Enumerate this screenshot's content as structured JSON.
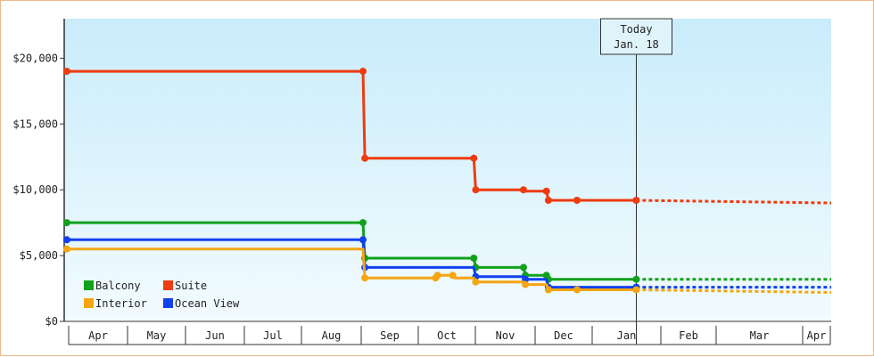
{
  "chart_data": {
    "type": "line",
    "title": "",
    "xlabel": "",
    "ylabel": "",
    "ylim": [
      0,
      23000
    ],
    "yticks": [
      0,
      5000,
      10000,
      15000,
      20000
    ],
    "ytick_labels": [
      "$0",
      "$5,000",
      "$10,000",
      "$15,000",
      "$20,000"
    ],
    "xlim": [
      "2023-03-27",
      "2024-04-29"
    ],
    "month_ticks": [
      {
        "label": "Apr",
        "start": "2023-03-27",
        "end": "2023-04-27"
      },
      {
        "label": "May",
        "start": "2023-04-27",
        "end": "2023-05-27"
      },
      {
        "label": "Jun",
        "start": "2023-05-27",
        "end": "2023-06-27"
      },
      {
        "label": "Jul",
        "start": "2023-06-27",
        "end": "2023-07-27"
      },
      {
        "label": "Aug",
        "start": "2023-07-27",
        "end": "2023-08-27"
      },
      {
        "label": "Sep",
        "start": "2023-08-27",
        "end": "2023-09-26"
      },
      {
        "label": "Oct",
        "start": "2023-09-26",
        "end": "2023-10-26"
      },
      {
        "label": "Nov",
        "start": "2023-10-26",
        "end": "2023-11-26"
      },
      {
        "label": "Dec",
        "start": "2023-11-26",
        "end": "2023-12-26"
      },
      {
        "label": "Jan",
        "start": "2023-12-26",
        "end": "2024-01-31"
      },
      {
        "label": "Feb",
        "start": "2024-01-31",
        "end": "2024-02-29"
      },
      {
        "label": "Mar",
        "start": "2024-02-29",
        "end": "2024-04-14"
      },
      {
        "label": "Apr",
        "start": "2024-04-14",
        "end": "2024-04-29"
      }
    ],
    "today": {
      "line1": "Today",
      "line2": "Jan. 18",
      "date": "2024-01-18"
    },
    "series": [
      {
        "name": "Suite",
        "color": "#ee3b0f",
        "points": [
          [
            "2023-03-26",
            19000
          ],
          [
            "2023-08-28",
            19000
          ],
          [
            "2023-08-29",
            12400
          ],
          [
            "2023-10-25",
            12400
          ],
          [
            "2023-10-26",
            10000
          ],
          [
            "2023-11-20",
            10000
          ],
          [
            "2023-11-21",
            9900
          ],
          [
            "2023-12-02",
            9900
          ],
          [
            "2023-12-03",
            9200
          ],
          [
            "2023-12-18",
            9200
          ],
          [
            "2024-01-18",
            9200
          ]
        ],
        "markers": [
          [
            "2023-03-26",
            19000
          ],
          [
            "2023-08-28",
            19000
          ],
          [
            "2023-08-29",
            12400
          ],
          [
            "2023-10-25",
            12400
          ],
          [
            "2023-10-26",
            10000
          ],
          [
            "2023-11-20",
            10000
          ],
          [
            "2023-12-02",
            9900
          ],
          [
            "2023-12-03",
            9200
          ],
          [
            "2023-12-18",
            9200
          ],
          [
            "2024-01-18",
            9200
          ]
        ],
        "forecast": [
          [
            "2024-01-18",
            9200
          ],
          [
            "2024-04-29",
            9000
          ]
        ]
      },
      {
        "name": "Balcony",
        "color": "#11a11c",
        "points": [
          [
            "2023-03-26",
            7500
          ],
          [
            "2023-08-28",
            7500
          ],
          [
            "2023-08-29",
            4800
          ],
          [
            "2023-10-25",
            4800
          ],
          [
            "2023-10-26",
            4100
          ],
          [
            "2023-11-20",
            4100
          ],
          [
            "2023-11-21",
            3500
          ],
          [
            "2023-12-02",
            3500
          ],
          [
            "2023-12-03",
            3200
          ],
          [
            "2024-01-18",
            3200
          ]
        ],
        "markers": [
          [
            "2023-03-26",
            7500
          ],
          [
            "2023-08-28",
            7500
          ],
          [
            "2023-08-29",
            4800
          ],
          [
            "2023-10-25",
            4800
          ],
          [
            "2023-10-26",
            4100
          ],
          [
            "2023-11-20",
            4100
          ],
          [
            "2023-11-21",
            3500
          ],
          [
            "2023-12-02",
            3500
          ],
          [
            "2023-12-03",
            3200
          ],
          [
            "2024-01-18",
            3200
          ]
        ],
        "forecast": [
          [
            "2024-01-18",
            3200
          ],
          [
            "2024-04-29",
            3200
          ]
        ]
      },
      {
        "name": "Ocean View",
        "color": "#1141ee",
        "points": [
          [
            "2023-03-26",
            6200
          ],
          [
            "2023-08-28",
            6200
          ],
          [
            "2023-08-29",
            4100
          ],
          [
            "2023-10-25",
            4100
          ],
          [
            "2023-10-26",
            3400
          ],
          [
            "2023-11-20",
            3400
          ],
          [
            "2023-11-21",
            3200
          ],
          [
            "2023-12-02",
            3200
          ],
          [
            "2023-12-03",
            2600
          ],
          [
            "2024-01-18",
            2600
          ]
        ],
        "markers": [
          [
            "2023-03-26",
            6200
          ],
          [
            "2023-08-28",
            6200
          ],
          [
            "2023-08-29",
            4100
          ],
          [
            "2023-10-26",
            3400
          ],
          [
            "2023-11-21",
            3200
          ],
          [
            "2023-12-03",
            2600
          ],
          [
            "2024-01-18",
            2600
          ]
        ],
        "forecast": [
          [
            "2024-01-18",
            2600
          ],
          [
            "2024-04-29",
            2600
          ]
        ]
      },
      {
        "name": "Interior",
        "color": "#f5a511",
        "points": [
          [
            "2023-03-26",
            5500
          ],
          [
            "2023-08-28",
            5500
          ],
          [
            "2023-08-29",
            3300
          ],
          [
            "2023-10-05",
            3300
          ],
          [
            "2023-10-06",
            3500
          ],
          [
            "2023-10-14",
            3500
          ],
          [
            "2023-10-15",
            3300
          ],
          [
            "2023-10-25",
            3300
          ],
          [
            "2023-10-26",
            3000
          ],
          [
            "2023-11-20",
            3000
          ],
          [
            "2023-11-21",
            2800
          ],
          [
            "2023-12-02",
            2800
          ],
          [
            "2023-12-03",
            2400
          ],
          [
            "2024-01-18",
            2400
          ]
        ],
        "markers": [
          [
            "2023-03-26",
            5500
          ],
          [
            "2023-08-29",
            3300
          ],
          [
            "2023-10-05",
            3300
          ],
          [
            "2023-10-06",
            3500
          ],
          [
            "2023-10-14",
            3500
          ],
          [
            "2023-10-26",
            3000
          ],
          [
            "2023-11-21",
            2800
          ],
          [
            "2023-12-03",
            2400
          ],
          [
            "2023-12-18",
            2400
          ],
          [
            "2024-01-18",
            2400
          ]
        ],
        "forecast": [
          [
            "2024-01-18",
            2400
          ],
          [
            "2024-04-29",
            2200
          ]
        ]
      }
    ],
    "legend": {
      "placement": "bottom-left",
      "entries": [
        {
          "name": "Balcony",
          "color": "#11a11c"
        },
        {
          "name": "Suite",
          "color": "#ee3b0f"
        },
        {
          "name": "Interior",
          "color": "#f5a511"
        },
        {
          "name": "Ocean View",
          "color": "#1141ee"
        }
      ]
    },
    "colors": {
      "bg_top": "#c9ecfb",
      "bg_bottom": "#f2fbfe",
      "frame": "#e8b98a",
      "axis": "#333333"
    }
  }
}
